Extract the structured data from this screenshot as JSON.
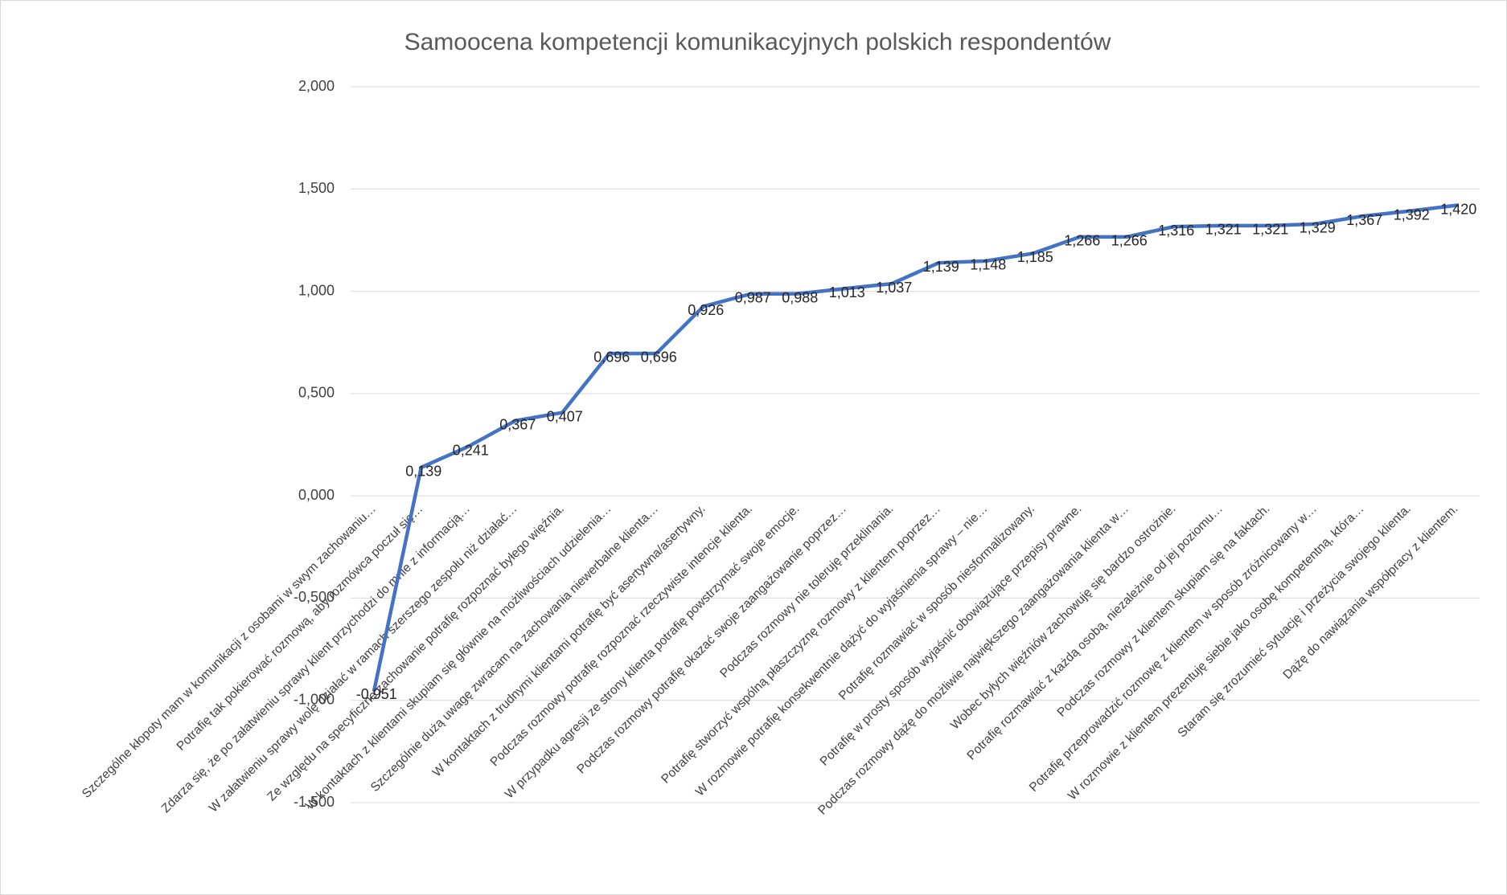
{
  "chart_data": {
    "type": "line",
    "title": "Samoocena kompetencji komunikacyjnych polskich respondentów",
    "categories": [
      "Szczególne kłopoty mam w komunikacji z osobami w swym zachowaniu…",
      "Potrafię tak pokierować rozmową, aby rozmówca poczuł się…",
      "Zdarza się, że po załatwieniu sprawy klient przychodzi do mnie z informacją…",
      "W załatwieniu sprawy wolę działać w ramach szerszego zespołu niż działać…",
      "Ze względu na specyficzne zachowanie potrafię rozpoznać byłego więźnia.",
      "W kontaktach z klientami skupiam się głównie na możliwościach udzielenia…",
      "Szczególnie dużą uwagę zwracam na zachowania niewerbalne klienta…",
      "W kontaktach z trudnymi klientami potrafię być asertywna/asertywny.",
      "Podczas rozmowy potrafię rozpoznać rzeczywiste intencje klienta.",
      "W przypadku agresji ze strony klienta potrafię powstrzymać swoje emocje.",
      "Podczas rozmowy potrafię okazać swoje zaangażowanie poprzez…",
      "Podczas rozmowy nie toleruję przeklinania.",
      "Potrafię stworzyć wspólną płaszczyznę rozmowy z klientem poprzez…",
      "W rozmowie potrafię konsekwentnie dążyć do wyjaśnienia sprawy – nie…",
      "Potrafię rozmawiać w sposób niesformalizowany.",
      "Potrafię w prosty sposób wyjaśnić obowiązujące przepisy prawne.",
      "Podczas rozmowy dążę do możliwie największego zaangażowania klienta w…",
      "Wobec byłych więźniów zachowuję się bardzo ostrożnie.",
      "Potrafię rozmawiać z każdą osobą, niezależnie od jej poziomu…",
      "Podczas rozmowy z klientem skupiam się na faktach.",
      "Potrafię przeprowadzić rozmowę z klientem w sposób zróżnicowany w…",
      "W rozmowie z klientem prezentuję siebie jako osobę kompetentną, która…",
      "Staram się zrozumieć sytuację i przeżycia swojego klienta.",
      "Dążę do nawiązania współpracy z klientem."
    ],
    "values": [
      -0.951,
      0.139,
      0.241,
      0.367,
      0.407,
      0.696,
      0.696,
      0.926,
      0.987,
      0.988,
      1.013,
      1.037,
      1.139,
      1.148,
      1.185,
      1.266,
      1.266,
      1.316,
      1.321,
      1.321,
      1.329,
      1.367,
      1.392,
      1.42
    ],
    "value_labels": [
      "-0,951",
      "0,139",
      "0,241",
      "0,367",
      "0,407",
      "0,696",
      "0,696",
      "0,926",
      "0,987",
      "0,988",
      "1,013",
      "1,037",
      "1,139",
      "1,148",
      "1,185",
      "1,266",
      "1,266",
      "1,316",
      "1,321",
      "1,321",
      "1,329",
      "1,367",
      "1,392",
      "1,420"
    ],
    "color": "#4472c4",
    "ylim": [
      -1.5,
      2
    ],
    "yticks": [
      {
        "value": -1.5,
        "label": "-1,500"
      },
      {
        "value": -1,
        "label": "-1,000"
      },
      {
        "value": -0.5,
        "label": "-0,500"
      },
      {
        "value": 0,
        "label": "0,000"
      },
      {
        "value": 0.5,
        "label": "0,500"
      },
      {
        "value": 1,
        "label": "1,000"
      },
      {
        "value": 1.5,
        "label": "1,500"
      },
      {
        "value": 2,
        "label": "2,000"
      }
    ],
    "grid": true
  }
}
